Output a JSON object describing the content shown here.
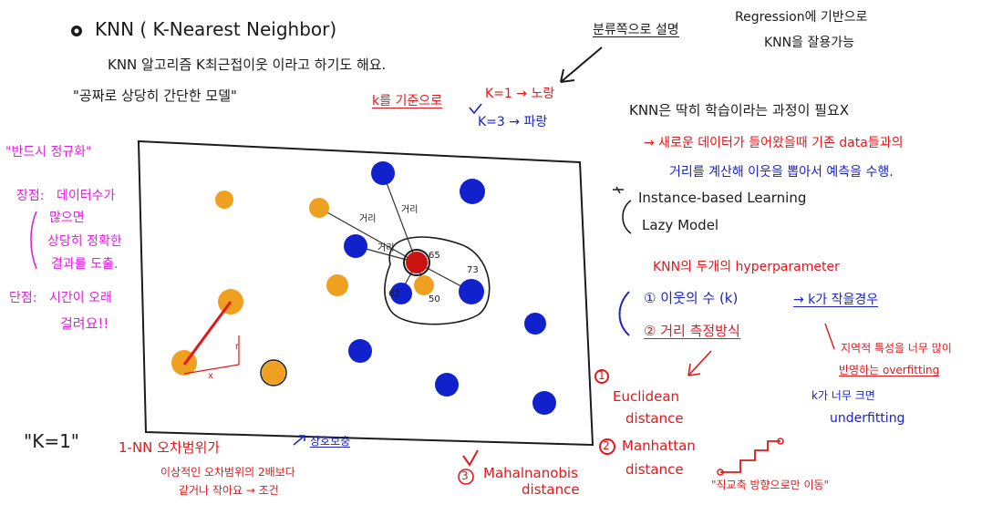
{
  "title": {
    "main": "KNN ( K-Nearest Neighbor)",
    "line1": "KNN 알고리즘 K최근접이웃 이라고 하기도 해요.",
    "line2": "\"공짜로 상당히 간단한 모델\"",
    "kbase": "k를 기준으로"
  },
  "kexample": {
    "k1": "K=1 → 노랑",
    "k3": "K=3 → 파랑",
    "classify_note": "분류쪽으로 설명",
    "regression_note_1": "Regression에 기반으로",
    "regression_note_2": "KNN을 잘용가능"
  },
  "right_notes": {
    "no_training": "KNN은 딱히 학습이라는 과정이 필요X",
    "new_data_1": "→ 새로운 데이터가 들어왔을때 기존 data들과의",
    "new_data_2": "거리를 계산해 이웃을 뽑아서 예측을 수행.",
    "instance_based": "Instance-based Learning",
    "lazy_model": "Lazy Model",
    "hyper_title": "KNN의 두개의 hyperparameter",
    "hp1": "① 이웃의 수 (k)",
    "hp1_note": "→ k가 작을경우",
    "hp2": "② 거리 측정방식",
    "overfit_1": "지역적 특성을 너무 많이",
    "overfit_2": "반영하는 overfitting",
    "underfit_1": "k가 너무 크면",
    "underfit_2": "underfitting"
  },
  "distances": {
    "euclid_1": "Euclidean",
    "euclid_2": "distance",
    "manhattan_1": "Manhattan",
    "manhattan_2": "distance",
    "mahal_1": "Mahalnanobis",
    "mahal_2": "distance",
    "stair_note": "\"직교축 방향으로만 이동\"",
    "num1": "1",
    "num2": "2",
    "num3": "3"
  },
  "left_notes": {
    "inverse_title": "\"반드시 정규화\"",
    "pro_label": "장점:",
    "pro_1": "데이터수가",
    "pro_2": "많으면",
    "pro_3": "상당히 정확한",
    "pro_4": "결과를 도출.",
    "con_label": "단점:",
    "con_1": "시간이 오래",
    "con_2": "걸려요!!"
  },
  "bottom_notes": {
    "k1_big": "\"K=1\"",
    "nn_line": "1-NN 오차범위가",
    "nn_line2": "이상적인 오차범위의 2배보다",
    "nn_line3": "같거나 작아요 → 조건",
    "arrow_note": "상호보충"
  },
  "plot_labels": {
    "d1": "거리",
    "d2": "거리",
    "d3": "거리",
    "n65": "65",
    "n73": "73",
    "n62": "62",
    "n50": "50",
    "r": "r",
    "x": "x"
  },
  "colors": {
    "blue_point": "#1122cc",
    "orange_point": "#f0a020",
    "red_query": "#cc1111",
    "note_red": "#e4161b",
    "note_blue": "#1a22c8",
    "note_magenta": "#e21ee0"
  }
}
